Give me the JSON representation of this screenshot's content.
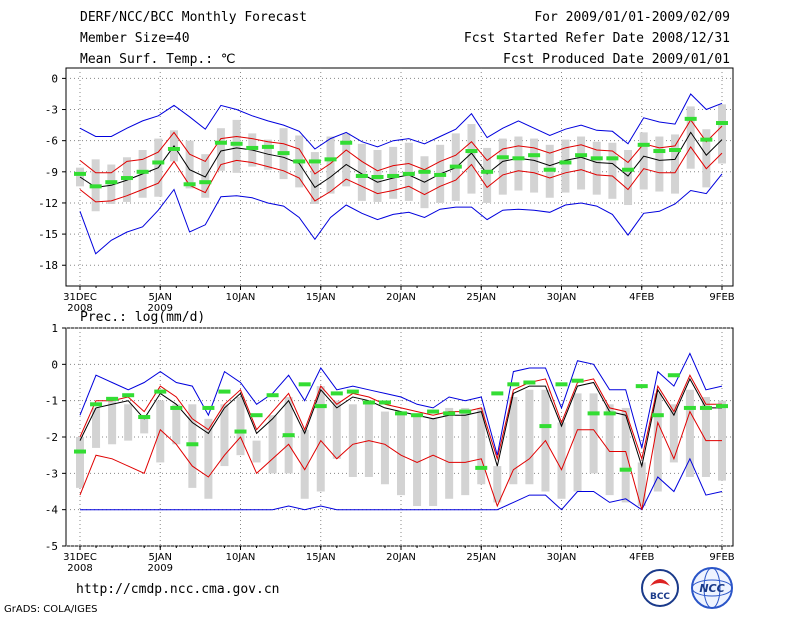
{
  "header": {
    "title": "DERF/NCC/BCC Monthly Forecast",
    "member_size": "Member Size=40",
    "variable": "Mean Surf. Temp.: ℃",
    "period": "For 2009/01/01-2009/02/09",
    "fcst_started": "Fcst Started Refer Date 2008/12/31",
    "fcst_produced": "Fcst Produced Date 2009/01/01"
  },
  "footer": {
    "url": "http://cmdp.ncc.cma.gov.cn",
    "credit": "GrADS: COLA/IGES"
  },
  "logos": [
    {
      "text": "BCC",
      "icon": "bcc-logo-icon"
    },
    {
      "text": "NCC",
      "icon": "ncc-logo-icon"
    }
  ],
  "colors": {
    "mean": "#000000",
    "inner_band": "#e00000",
    "outer_band": "#0000dd",
    "spread_bar": "#d3d3d3",
    "marker": "#33dd33",
    "grid": "#888888"
  },
  "chart_data": [
    {
      "type": "line",
      "title": "Mean Surf. Temp.: ℃",
      "ylim": [
        -20,
        1
      ],
      "yticks": [
        0,
        -3,
        -6,
        -9,
        -12,
        -15,
        -18
      ],
      "xlim": [
        0,
        40
      ],
      "xticks": [
        {
          "x": 0,
          "label": "31DEC",
          "sub": "2008"
        },
        {
          "x": 5,
          "label": "5JAN",
          "sub": "2009"
        },
        {
          "x": 10,
          "label": "10JAN",
          "sub": ""
        },
        {
          "x": 15,
          "label": "15JAN",
          "sub": ""
        },
        {
          "x": 20,
          "label": "20JAN",
          "sub": ""
        },
        {
          "x": 25,
          "label": "25JAN",
          "sub": ""
        },
        {
          "x": 30,
          "label": "30JAN",
          "sub": ""
        },
        {
          "x": 35,
          "label": "4FEB",
          "sub": ""
        },
        {
          "x": 40,
          "label": "9FEB",
          "sub": ""
        }
      ],
      "mean": [
        -9.5,
        -10.5,
        -10.3,
        -9.8,
        -9.2,
        -8.6,
        -6.5,
        -8.8,
        -9.5,
        -7.0,
        -6.7,
        -6.9,
        -7.3,
        -7.6,
        -8.2,
        -10.5,
        -9.5,
        -8.3,
        -9.2,
        -10.0,
        -9.6,
        -9.3,
        -10.0,
        -9.2,
        -8.6,
        -7.2,
        -9.2,
        -8.0,
        -7.7,
        -7.9,
        -8.4,
        -7.9,
        -7.6,
        -8.1,
        -8.2,
        -9.4,
        -7.5,
        -7.9,
        -7.8,
        -5.2,
        -7.4,
        -5.9
      ],
      "red_upper": [
        -7.9,
        -9.1,
        -9.1,
        -8.0,
        -7.8,
        -7.1,
        -5.2,
        -7.3,
        -8.0,
        -5.8,
        -5.6,
        -5.8,
        -6.1,
        -6.3,
        -6.8,
        -9.2,
        -8.2,
        -6.9,
        -8.0,
        -8.9,
        -8.4,
        -8.2,
        -8.8,
        -8.0,
        -7.4,
        -6.1,
        -7.9,
        -6.8,
        -6.5,
        -6.7,
        -7.2,
        -6.7,
        -6.4,
        -6.9,
        -7.0,
        -8.1,
        -6.3,
        -6.7,
        -6.5,
        -4.0,
        -6.1,
        -4.6
      ],
      "red_lower": [
        -10.7,
        -11.9,
        -11.8,
        -11.3,
        -10.7,
        -10.1,
        -8.0,
        -10.3,
        -11.0,
        -8.3,
        -7.9,
        -8.1,
        -8.5,
        -8.9,
        -9.6,
        -11.8,
        -10.9,
        -9.7,
        -10.4,
        -11.1,
        -10.8,
        -10.4,
        -11.2,
        -10.4,
        -9.8,
        -8.3,
        -10.5,
        -9.3,
        -8.9,
        -9.1,
        -9.6,
        -9.1,
        -8.8,
        -9.3,
        -9.4,
        -10.7,
        -8.7,
        -9.1,
        -9.1,
        -6.6,
        -8.7,
        -7.2
      ],
      "blue_upper": [
        -4.8,
        -5.6,
        -5.6,
        -4.8,
        -4.1,
        -3.6,
        -2.6,
        -3.7,
        -4.9,
        -2.6,
        -3.0,
        -3.6,
        -4.1,
        -4.5,
        -5.1,
        -6.8,
        -5.8,
        -5.2,
        -6.1,
        -6.6,
        -6.0,
        -5.8,
        -6.3,
        -5.6,
        -4.9,
        -3.4,
        -5.7,
        -4.8,
        -4.1,
        -4.8,
        -5.5,
        -4.9,
        -4.5,
        -5.0,
        -5.1,
        -6.3,
        -3.8,
        -4.2,
        -4.4,
        -1.5,
        -3.0,
        -2.4
      ],
      "blue_lower": [
        -12.8,
        -16.9,
        -15.6,
        -14.8,
        -14.3,
        -12.7,
        -10.7,
        -14.8,
        -14.1,
        -11.4,
        -11.3,
        -11.5,
        -12.0,
        -12.3,
        -13.4,
        -15.5,
        -13.4,
        -12.2,
        -13.0,
        -13.6,
        -13.1,
        -12.9,
        -13.4,
        -12.6,
        -12.4,
        -12.4,
        -13.6,
        -12.7,
        -12.6,
        -12.7,
        -12.9,
        -12.2,
        -12.0,
        -12.3,
        -13.1,
        -15.1,
        -13.0,
        -12.8,
        -12.1,
        -10.8,
        -11.1,
        -9.2
      ],
      "bars_top": [
        -8.6,
        -7.8,
        -8.3,
        -7.6,
        -6.9,
        -5.8,
        -5.0,
        -6.0,
        -7.3,
        -4.8,
        -4.0,
        -5.3,
        -5.9,
        -4.8,
        -5.5,
        -7.1,
        -5.6,
        -5.3,
        -6.3,
        -6.9,
        -6.6,
        -6.2,
        -7.5,
        -6.4,
        -5.3,
        -4.4,
        -6.7,
        -5.8,
        -5.6,
        -5.8,
        -6.4,
        -5.9,
        -5.6,
        -6.1,
        -6.2,
        -6.9,
        -5.2,
        -5.6,
        -5.4,
        -2.7,
        -4.9,
        -2.5
      ],
      "bars_bottom": [
        -10.4,
        -12.8,
        -12.1,
        -11.9,
        -11.5,
        -11.4,
        -8.0,
        -10.6,
        -11.5,
        -8.9,
        -9.1,
        -8.5,
        -8.8,
        -9.7,
        -10.5,
        -12.1,
        -11.1,
        -10.4,
        -11.8,
        -11.9,
        -11.6,
        -11.8,
        -12.5,
        -12.0,
        -11.8,
        -11.1,
        -12.0,
        -11.2,
        -10.8,
        -11.0,
        -11.5,
        -11.0,
        -10.7,
        -11.2,
        -11.6,
        -12.2,
        -10.7,
        -10.9,
        -11.1,
        -8.7,
        -10.5,
        -8.2
      ],
      "markers": [
        -9.2,
        -10.4,
        -10.0,
        -9.6,
        -9.0,
        -8.1,
        -6.8,
        -10.2,
        -10.0,
        -6.2,
        -6.3,
        -6.7,
        -6.6,
        -7.2,
        -8.0,
        -8.0,
        -7.8,
        -6.2,
        -9.4,
        -9.5,
        -9.4,
        -9.2,
        -9.0,
        -9.3,
        -8.5,
        -7.0,
        -9.0,
        -7.6,
        -7.7,
        -7.4,
        -8.8,
        -8.1,
        -7.4,
        -7.7,
        -7.7,
        -8.8,
        -6.4,
        -7.0,
        -6.9,
        -3.9,
        -5.9,
        -4.3
      ]
    },
    {
      "type": "line",
      "title": "Prec.: log(mm/d)",
      "ylim": [
        -5,
        1
      ],
      "yticks": [
        1,
        0,
        -1,
        -2,
        -3,
        -4,
        -5
      ],
      "xlim": [
        0,
        40
      ],
      "xticks": [
        {
          "x": 0,
          "label": "31DEC",
          "sub": "2008"
        },
        {
          "x": 5,
          "label": "5JAN",
          "sub": "2009"
        },
        {
          "x": 10,
          "label": "10JAN",
          "sub": ""
        },
        {
          "x": 15,
          "label": "15JAN",
          "sub": ""
        },
        {
          "x": 20,
          "label": "20JAN",
          "sub": ""
        },
        {
          "x": 25,
          "label": "25JAN",
          "sub": ""
        },
        {
          "x": 30,
          "label": "30JAN",
          "sub": ""
        },
        {
          "x": 35,
          "label": "4FEB",
          "sub": ""
        },
        {
          "x": 40,
          "label": "9FEB",
          "sub": ""
        }
      ],
      "mean": [
        -2.1,
        -1.2,
        -1.1,
        -1.0,
        -1.5,
        -0.8,
        -1.1,
        -1.6,
        -1.9,
        -1.2,
        -0.8,
        -1.9,
        -1.5,
        -1.0,
        -1.9,
        -0.7,
        -1.2,
        -0.9,
        -1.0,
        -1.2,
        -1.3,
        -1.4,
        -1.5,
        -1.4,
        -1.4,
        -1.3,
        -2.8,
        -0.8,
        -0.6,
        -0.6,
        -1.7,
        -0.6,
        -0.5,
        -1.3,
        -1.4,
        -2.8,
        -0.7,
        -1.4,
        -0.4,
        -1.2,
        -1.2
      ],
      "red_upper": [
        -2.0,
        -1.0,
        -1.0,
        -0.9,
        -1.3,
        -0.6,
        -0.9,
        -1.5,
        -1.8,
        -1.1,
        -0.7,
        -1.8,
        -1.3,
        -0.8,
        -1.8,
        -0.6,
        -1.1,
        -0.8,
        -0.9,
        -1.1,
        -1.2,
        -1.3,
        -1.4,
        -1.3,
        -1.3,
        -1.2,
        -2.6,
        -0.7,
        -0.5,
        -0.4,
        -1.6,
        -0.5,
        -0.4,
        -1.2,
        -1.3,
        -2.6,
        -0.6,
        -1.3,
        -0.3,
        -1.1,
        -1.1
      ],
      "red_lower": [
        -3.6,
        -2.5,
        -2.6,
        -2.8,
        -3.0,
        -1.8,
        -2.2,
        -2.8,
        -3.1,
        -2.5,
        -2.0,
        -3.0,
        -2.6,
        -2.2,
        -2.9,
        -2.1,
        -2.6,
        -2.2,
        -2.1,
        -2.2,
        -2.5,
        -2.7,
        -2.5,
        -2.7,
        -2.7,
        -2.6,
        -3.9,
        -2.9,
        -2.6,
        -2.1,
        -2.9,
        -1.8,
        -1.8,
        -2.4,
        -2.4,
        -4.0,
        -1.6,
        -2.6,
        -1.3,
        -2.1,
        -2.1
      ],
      "blue_upper": [
        -1.4,
        -0.3,
        -0.5,
        -0.7,
        -0.5,
        -0.2,
        -0.5,
        -0.6,
        -1.4,
        -0.2,
        -0.5,
        -1.1,
        -0.8,
        -0.3,
        -1.0,
        -0.1,
        -0.7,
        -0.6,
        -0.7,
        -0.8,
        -0.9,
        -1.1,
        -1.2,
        -0.9,
        -1.0,
        -0.9,
        -2.5,
        -0.2,
        -0.1,
        -0.1,
        -1.2,
        0.1,
        0.0,
        -0.7,
        -0.7,
        -2.3,
        -0.2,
        -0.6,
        0.3,
        -0.7,
        -0.6
      ],
      "blue_lower": [
        -4.0,
        -4.0,
        -4.0,
        -4.0,
        -4.0,
        -4.0,
        -4.0,
        -4.0,
        -4.0,
        -4.0,
        -4.0,
        -4.0,
        -4.0,
        -3.9,
        -4.0,
        -3.9,
        -4.0,
        -4.0,
        -4.0,
        -4.0,
        -4.0,
        -4.0,
        -4.0,
        -4.0,
        -4.0,
        -4.0,
        -4.0,
        -3.8,
        -3.6,
        -3.6,
        -4.0,
        -3.5,
        -3.5,
        -3.8,
        -3.7,
        -4.0,
        -3.1,
        -3.5,
        -2.6,
        -3.6,
        -3.5
      ],
      "bars_top": [
        -2.0,
        -1.2,
        -0.9,
        -1.1,
        -1.4,
        -1.0,
        -1.1,
        -1.1,
        -1.5,
        -1.1,
        -0.9,
        -2.1,
        -1.4,
        -0.9,
        -1.8,
        -0.6,
        -1.0,
        -1.1,
        -1.1,
        -1.3,
        -1.3,
        -1.4,
        -1.5,
        -1.2,
        -1.2,
        -1.2,
        -2.8,
        -0.9,
        -0.7,
        -0.7,
        -1.6,
        -0.8,
        -0.8,
        -1.1,
        -1.2,
        -2.7,
        -0.8,
        -1.1,
        -0.7,
        -0.9,
        -1.0
      ],
      "bars_bottom": [
        -3.4,
        -2.3,
        -2.2,
        -2.1,
        -1.9,
        -2.7,
        -2.2,
        -3.4,
        -3.7,
        -2.8,
        -2.5,
        -2.7,
        -3.0,
        -3.0,
        -3.7,
        -3.5,
        -2.6,
        -3.1,
        -3.1,
        -3.3,
        -3.6,
        -3.9,
        -3.9,
        -3.7,
        -3.6,
        -3.3,
        -3.8,
        -3.3,
        -3.3,
        -3.5,
        -3.7,
        -3.5,
        -3.0,
        -3.6,
        -3.8,
        -3.9,
        -3.5,
        -2.7,
        -3.1,
        -3.1,
        -3.2
      ],
      "markers": [
        -2.4,
        -1.1,
        -0.95,
        -0.85,
        -1.45,
        -0.75,
        -1.2,
        -2.2,
        -1.2,
        -0.75,
        -1.85,
        -1.4,
        -0.85,
        -1.95,
        -0.55,
        -1.15,
        -0.8,
        -0.75,
        -1.05,
        -1.05,
        -1.35,
        -1.4,
        -1.3,
        -1.35,
        -1.3,
        -2.85,
        -0.8,
        -0.55,
        -0.5,
        -1.7,
        -0.55,
        -0.45,
        -1.35,
        -1.35,
        -2.9,
        -0.6,
        -1.4,
        -0.3,
        -1.2,
        -1.2,
        -1.15
      ]
    }
  ]
}
